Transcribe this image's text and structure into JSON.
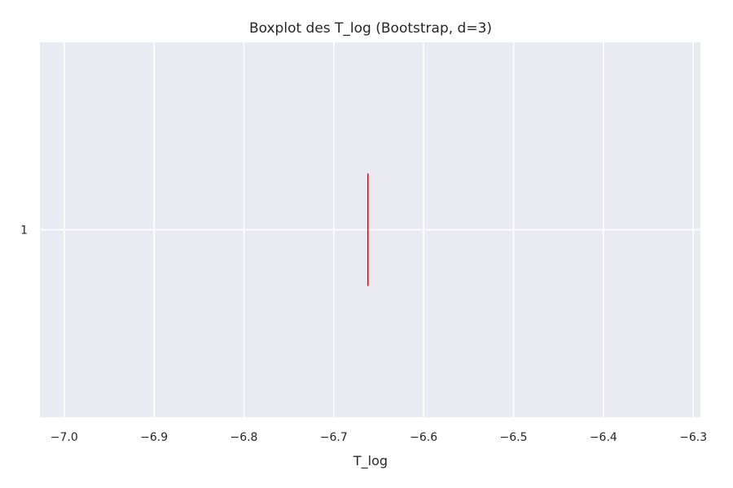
{
  "chart_data": {
    "type": "boxplot",
    "orientation": "horizontal",
    "title": "Boxplot des T_log (Bootstrap, d=3)",
    "xlabel": "T_log",
    "ylabel": "",
    "xlim": [
      -7.027,
      -6.292
    ],
    "x_ticks": [
      -7.0,
      -6.9,
      -6.8,
      -6.7,
      -6.6,
      -6.5,
      -6.4,
      -6.3
    ],
    "x_tick_labels": [
      "−7.0",
      "−6.9",
      "−6.8",
      "−6.7",
      "−6.6",
      "−6.5",
      "−6.4",
      "−6.3"
    ],
    "categories": [
      "1"
    ],
    "series": [
      {
        "category": "1",
        "median": -6.662,
        "q1": -6.662,
        "q3": -6.662,
        "whisker_low": -6.662,
        "whisker_high": -6.662
      }
    ],
    "grid": true,
    "colors": {
      "background": "#eaeaf2",
      "grid": "#ffffff",
      "median": "#ff0000"
    }
  }
}
